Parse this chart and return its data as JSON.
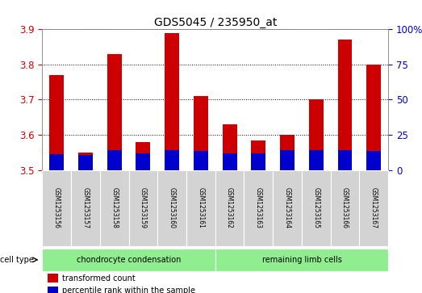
{
  "title": "GDS5045 / 235950_at",
  "samples": [
    "GSM1253156",
    "GSM1253157",
    "GSM1253158",
    "GSM1253159",
    "GSM1253160",
    "GSM1253161",
    "GSM1253162",
    "GSM1253163",
    "GSM1253164",
    "GSM1253165",
    "GSM1253166",
    "GSM1253167"
  ],
  "red_values": [
    3.77,
    3.55,
    3.83,
    3.58,
    3.89,
    3.71,
    3.63,
    3.585,
    3.6,
    3.7,
    3.87,
    3.8
  ],
  "blue_values": [
    3.545,
    3.543,
    3.557,
    3.548,
    3.557,
    3.553,
    3.548,
    3.548,
    3.557,
    3.557,
    3.557,
    3.553
  ],
  "ymin": 3.5,
  "ymax": 3.9,
  "yticks": [
    3.5,
    3.6,
    3.7,
    3.8,
    3.9
  ],
  "right_yticks": [
    0,
    25,
    50,
    75,
    100
  ],
  "right_yticklabels": [
    "0",
    "25",
    "50",
    "75",
    "100%"
  ],
  "group_boundaries": [
    [
      0,
      6,
      "chondrocyte condensation"
    ],
    [
      6,
      12,
      "remaining limb cells"
    ]
  ],
  "cell_type_label": "cell type",
  "legend_red": "transformed count",
  "legend_blue": "percentile rank within the sample",
  "red_color": "#CC0000",
  "blue_color": "#0000CC",
  "bar_width": 0.5,
  "bg_color": "#FFFFFF",
  "plot_bg": "#FFFFFF",
  "grid_color": "#000000",
  "title_color": "#000000",
  "left_tick_color": "#CC0000",
  "right_tick_color": "#0000CC",
  "sample_bg": "#D3D3D3",
  "group_bg": "#90EE90"
}
